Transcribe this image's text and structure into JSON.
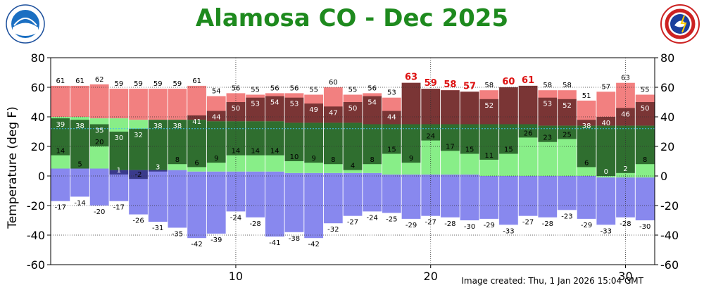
{
  "title": "Alamosa CO - Dec 2025",
  "footer": "Image created: Thu, 1 Jan 2026 15:04 GMT",
  "logos": {
    "left": "noaa-logo",
    "right": "nws-logo"
  },
  "colors": {
    "record_high": "#f28080",
    "record_high_dark": "#7a3535",
    "normal": "#2f6e2f",
    "normal_light": "#88ee88",
    "record_low": "#8888ee",
    "record_low_dark": "#3a3a8c",
    "title": "#1e8a1e",
    "record_label": "#dd1111"
  },
  "chart_data": {
    "type": "bar",
    "ylabel": "Temperature (deg F)",
    "ylim": [
      -60,
      80
    ],
    "y_ticks": [
      -60,
      -40,
      -20,
      0,
      20,
      40,
      60,
      80
    ],
    "xlim": [
      0.5,
      31.5
    ],
    "x_ticks": [
      10,
      20,
      30
    ],
    "grid": true,
    "freezing_line": 32,
    "days": [
      1,
      2,
      3,
      4,
      5,
      6,
      7,
      8,
      9,
      10,
      11,
      12,
      13,
      14,
      15,
      16,
      17,
      18,
      19,
      20,
      21,
      22,
      23,
      24,
      25,
      26,
      27,
      28,
      29,
      30,
      31
    ],
    "record_high": [
      61,
      61,
      62,
      59,
      59,
      59,
      59,
      61,
      54,
      56,
      55,
      56,
      56,
      55,
      60,
      55,
      56,
      53,
      63,
      59,
      58,
      57,
      58,
      60,
      61,
      58,
      58,
      51,
      57,
      63,
      55
    ],
    "record_high_set": [
      false,
      false,
      false,
      false,
      false,
      false,
      false,
      false,
      false,
      false,
      false,
      false,
      false,
      false,
      false,
      false,
      false,
      false,
      true,
      true,
      true,
      true,
      false,
      true,
      true,
      false,
      false,
      false,
      false,
      false,
      false
    ],
    "high": [
      39,
      38,
      35,
      30,
      32,
      38,
      38,
      41,
      44,
      50,
      53,
      54,
      53,
      49,
      47,
      50,
      54,
      44,
      63,
      59,
      58,
      57,
      52,
      60,
      61,
      53,
      52,
      38,
      40,
      46,
      50
    ],
    "low": [
      14,
      5,
      20,
      1,
      -2,
      3,
      8,
      6,
      9,
      14,
      14,
      14,
      10,
      9,
      8,
      4,
      8,
      15,
      9,
      24,
      17,
      15,
      11,
      15,
      26,
      23,
      25,
      6,
      0,
      2,
      8
    ],
    "record_low": [
      -17,
      -14,
      -20,
      -17,
      -26,
      -31,
      -35,
      -42,
      -39,
      -24,
      -28,
      -41,
      -38,
      -42,
      -32,
      -27,
      -24,
      -25,
      -29,
      -27,
      -28,
      -30,
      -29,
      -33,
      -27,
      -28,
      -23,
      -29,
      -33,
      -28,
      -30
    ],
    "normal_high": [
      40,
      40,
      39,
      39,
      38,
      38,
      38,
      38,
      37,
      37,
      37,
      37,
      36,
      36,
      36,
      36,
      35,
      35,
      35,
      35,
      35,
      35,
      35,
      35,
      35,
      34,
      34,
      34,
      34,
      34,
      34
    ],
    "normal_low": [
      5,
      5,
      5,
      4,
      4,
      4,
      4,
      3,
      3,
      3,
      3,
      3,
      2,
      2,
      2,
      2,
      2,
      1,
      1,
      1,
      1,
      1,
      0,
      0,
      0,
      0,
      0,
      0,
      -1,
      -1,
      -1
    ]
  }
}
